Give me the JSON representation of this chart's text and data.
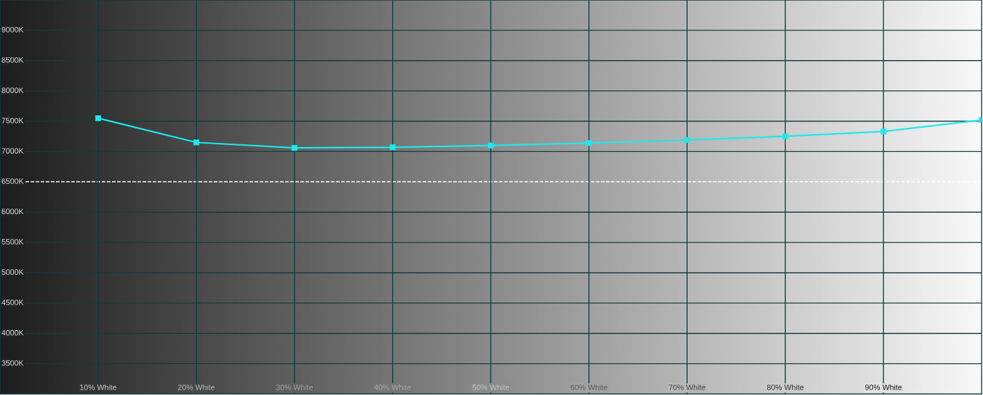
{
  "chart_data": {
    "type": "line",
    "x": [
      10,
      20,
      30,
      40,
      50,
      60,
      70,
      80,
      90,
      100
    ],
    "series": [
      {
        "color": "#1ee8ee",
        "values": [
          7550,
          7150,
          7060,
          7070,
          7100,
          7140,
          7190,
          7250,
          7330,
          7520
        ]
      }
    ],
    "xlim": [
      0,
      100
    ],
    "xticks": [
      {
        "value": 10,
        "label": "10% White"
      },
      {
        "value": 20,
        "label": "20% White"
      },
      {
        "value": 30,
        "label": "30% White"
      },
      {
        "value": 40,
        "label": "40% White"
      },
      {
        "value": 50,
        "label": "50% White"
      },
      {
        "value": 60,
        "label": "60% White"
      },
      {
        "value": 70,
        "label": "70% White"
      },
      {
        "value": 80,
        "label": "80% White"
      },
      {
        "value": 90,
        "label": "90% White"
      }
    ],
    "ylim": [
      3000,
      9500
    ],
    "yticks": [
      {
        "value": 3500,
        "label": "3500K"
      },
      {
        "value": 4000,
        "label": "4000K"
      },
      {
        "value": 4500,
        "label": "4500K"
      },
      {
        "value": 5000,
        "label": "5000K"
      },
      {
        "value": 5500,
        "label": "5500K"
      },
      {
        "value": 6000,
        "label": "6000K"
      },
      {
        "value": 6500,
        "label": "6500K"
      },
      {
        "value": 7000,
        "label": "7000K"
      },
      {
        "value": 7500,
        "label": "7500K"
      },
      {
        "value": 8000,
        "label": "8000K"
      },
      {
        "value": 8500,
        "label": "8500K"
      },
      {
        "value": 9000,
        "label": "9000K"
      }
    ],
    "grid": true,
    "marker": "square",
    "line_style": "solid",
    "ref_lines": [
      {
        "axis": "y",
        "value": 6500,
        "color": "#ffffff",
        "line_style": "dashed"
      }
    ]
  }
}
